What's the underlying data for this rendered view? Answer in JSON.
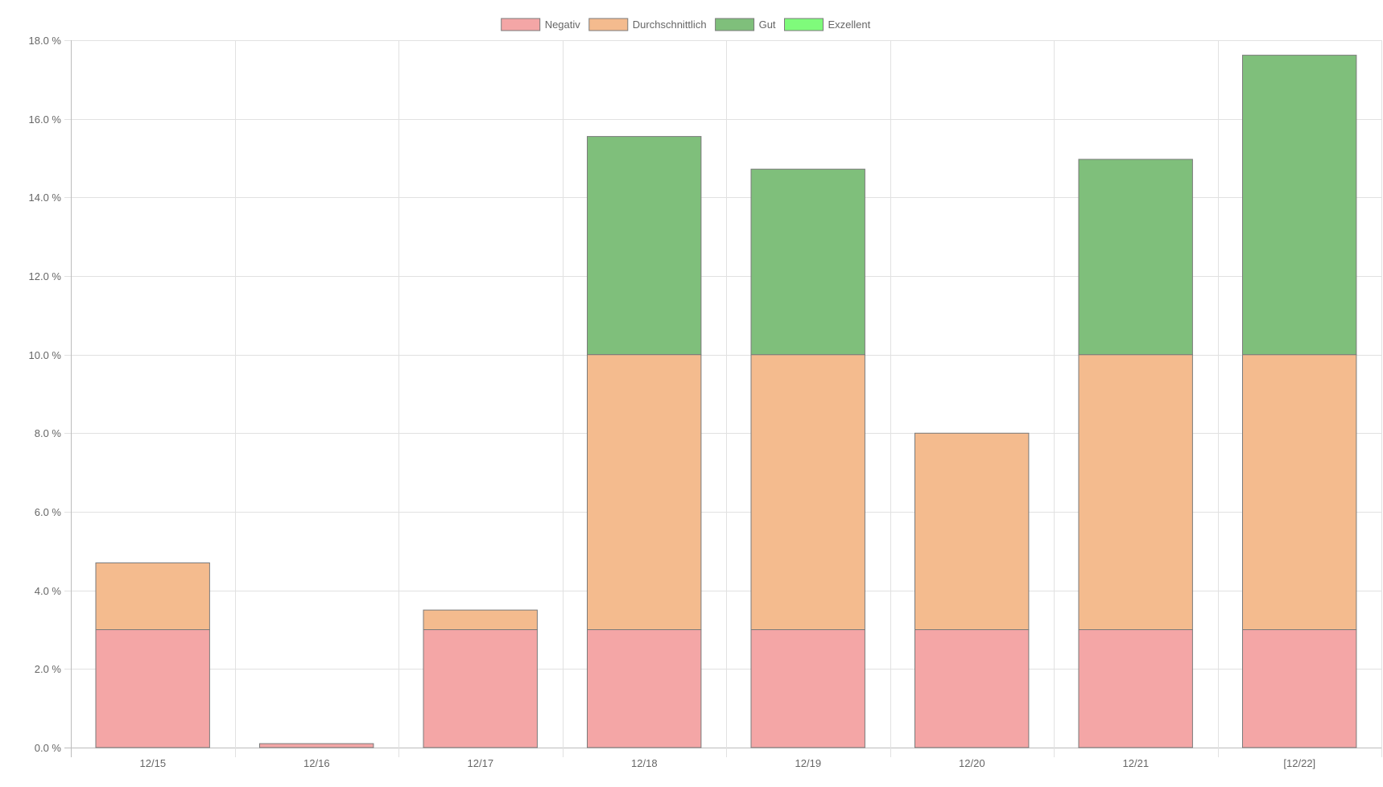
{
  "chart_data": {
    "type": "bar",
    "stacked": true,
    "categories": [
      "12/15",
      "12/16",
      "12/17",
      "12/18",
      "12/19",
      "12/20",
      "12/21",
      "[12/22]"
    ],
    "series": [
      {
        "name": "Negativ",
        "color": "#f4a6a6",
        "values": [
          3.0,
          0.1,
          3.0,
          3.0,
          3.0,
          3.0,
          3.0,
          3.0
        ]
      },
      {
        "name": "Durchschnittlich",
        "color": "#f4bb8e",
        "values": [
          1.7,
          0.0,
          0.5,
          7.0,
          7.0,
          5.0,
          7.0,
          7.0
        ]
      },
      {
        "name": "Gut",
        "color": "#7fbf7b",
        "values": [
          0.0,
          0.0,
          0.0,
          5.55,
          4.72,
          0.0,
          4.97,
          7.62
        ]
      },
      {
        "name": "Exzellent",
        "color": "#7ffb7b",
        "values": [
          0,
          0,
          0,
          0,
          0,
          0,
          0,
          0
        ]
      }
    ],
    "ylim": [
      0,
      18
    ],
    "y_ticks": [
      0,
      2,
      4,
      6,
      8,
      10,
      12,
      14,
      16,
      18
    ],
    "y_tick_format": "%.1f %",
    "y_tick_labels": [
      "0.0 %",
      "2.0 %",
      "4.0 %",
      "6.0 %",
      "8.0 %",
      "10.0 %",
      "12.0 %",
      "14.0 %",
      "16.0 %",
      "18.0 %"
    ],
    "grid": true,
    "legend_position": "top-center",
    "title": "",
    "xlabel": "",
    "ylabel": ""
  }
}
